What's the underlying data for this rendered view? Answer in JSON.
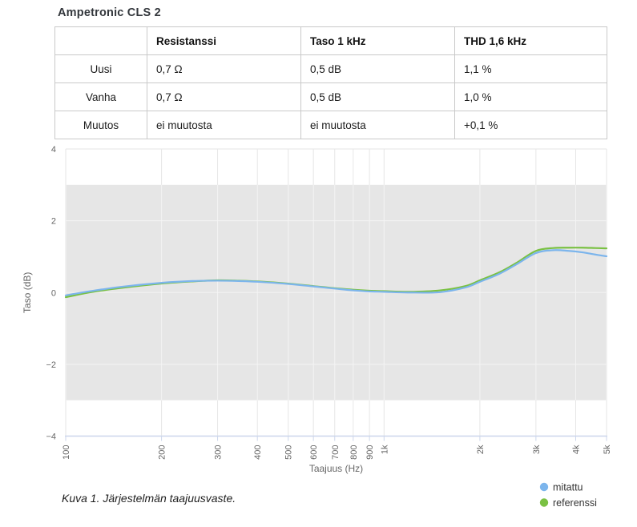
{
  "page": {
    "title": "Ampetronic CLS 2"
  },
  "table": {
    "headers": [
      "",
      "Resistanssi",
      "Taso 1 kHz",
      "THD 1,6 kHz"
    ],
    "rows": [
      {
        "label": "Uusi",
        "resistanssi": "0,7 Ω",
        "taso": "0,5 dB",
        "thd": "1,1 %"
      },
      {
        "label": "Vanha",
        "resistanssi": "0,7 Ω",
        "taso": "0,5 dB",
        "thd": "1,0 %"
      },
      {
        "label": "Muutos",
        "resistanssi": "ei muutosta",
        "taso": "ei muutosta",
        "thd": "+0,1 %"
      }
    ]
  },
  "chart_data": {
    "type": "line",
    "title": "",
    "xlabel": "Taajuus (Hz)",
    "ylabel": "Taso (dB)",
    "x_scale": "log",
    "xlim": [
      100,
      5000
    ],
    "ylim": [
      -4,
      4
    ],
    "grid": true,
    "legend_position": "bottom-right",
    "plot_band": {
      "from": -3,
      "to": 3,
      "color": "#e6e6e6"
    },
    "colors": {
      "axis_line": "#ccd6eb",
      "grid_on_white": "#e6e6e6",
      "grid_on_band": "#f4f4f4",
      "tick_label": "#666666",
      "axis_title": "#666666",
      "legend_text": "#333333"
    },
    "x_ticks": [
      {
        "v": 100,
        "label": "100"
      },
      {
        "v": 200,
        "label": "200"
      },
      {
        "v": 300,
        "label": "300"
      },
      {
        "v": 400,
        "label": "400"
      },
      {
        "v": 500,
        "label": "500"
      },
      {
        "v": 600,
        "label": "600"
      },
      {
        "v": 700,
        "label": "700"
      },
      {
        "v": 800,
        "label": "800"
      },
      {
        "v": 900,
        "label": "900"
      },
      {
        "v": 1000,
        "label": "1k"
      },
      {
        "v": 2000,
        "label": "2k"
      },
      {
        "v": 3000,
        "label": "3k"
      },
      {
        "v": 4000,
        "label": "4k"
      },
      {
        "v": 5000,
        "label": "5k"
      }
    ],
    "y_ticks": [
      {
        "v": 4,
        "label": "4"
      },
      {
        "v": 2,
        "label": "2"
      },
      {
        "v": 0,
        "label": "0"
      },
      {
        "v": -2,
        "label": "−2"
      },
      {
        "v": -4,
        "label": "−4"
      }
    ],
    "x": [
      100,
      120,
      150,
      200,
      250,
      300,
      350,
      400,
      500,
      600,
      700,
      800,
      900,
      1000,
      1200,
      1500,
      1800,
      2000,
      2300,
      2600,
      3000,
      3400,
      3800,
      4200,
      4600,
      5000
    ],
    "series": [
      {
        "name": "mitattu",
        "color": "#7cb5ec",
        "values": [
          -0.08,
          0.04,
          0.16,
          0.27,
          0.32,
          0.33,
          0.32,
          0.3,
          0.24,
          0.17,
          0.11,
          0.06,
          0.03,
          0.02,
          0.0,
          0.01,
          0.14,
          0.3,
          0.52,
          0.78,
          1.1,
          1.18,
          1.16,
          1.12,
          1.06,
          1.01
        ]
      },
      {
        "name": "referenssi",
        "color": "#7ac143",
        "values": [
          -0.13,
          0.01,
          0.13,
          0.25,
          0.31,
          0.34,
          0.33,
          0.31,
          0.25,
          0.18,
          0.12,
          0.08,
          0.05,
          0.04,
          0.02,
          0.06,
          0.18,
          0.34,
          0.56,
          0.82,
          1.16,
          1.24,
          1.25,
          1.25,
          1.24,
          1.23
        ]
      }
    ]
  },
  "caption": "Kuva 1. Järjestelmän taajuusvaste."
}
